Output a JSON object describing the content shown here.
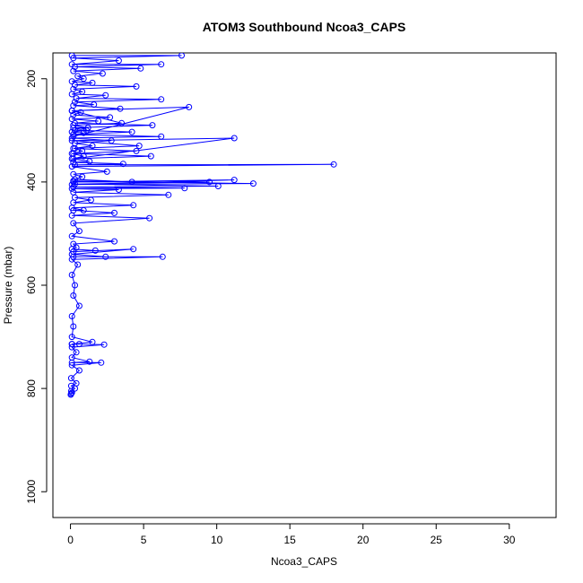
{
  "chart_data": {
    "type": "line",
    "title": "ATOM3 Southbound Ncoa3_CAPS",
    "xlabel": "Ncoa3_CAPS",
    "ylabel": "Pressure (mbar)",
    "xlim": [
      -1.2,
      33.2
    ],
    "ylim": [
      1050,
      150
    ],
    "y_reversed": true,
    "x_ticks": [
      "0",
      "5",
      "10",
      "15",
      "20",
      "25",
      "30"
    ],
    "y_ticks": [
      "200",
      "400",
      "600",
      "800",
      "1000"
    ],
    "grid": false,
    "legend": "none",
    "colors": {
      "series": "#0000ff",
      "axes": "#000000"
    },
    "marker": "open-circle",
    "series": [
      {
        "x": [
          0.1,
          7.6,
          0.2,
          3.3,
          0.1,
          6.2,
          0.3,
          4.8,
          0.2,
          2.2,
          0.5,
          0.9,
          0.1,
          1.5,
          0.3,
          4.5,
          0.2,
          0.8,
          0.1,
          2.4,
          0.4,
          6.2,
          0.3,
          1.6,
          0.2,
          3.4,
          0.1,
          0.7,
          0.2,
          2.7,
          0.1,
          1.9,
          0.3,
          5.6,
          0.2,
          1.1,
          0.1,
          0.9,
          0.2,
          8.1,
          0.1,
          3.5,
          0.2,
          1.2,
          0.3,
          4.2,
          0.2,
          6.2,
          0.1,
          2.8,
          0.3,
          1.5,
          0.2,
          4.5,
          0.1,
          0.9,
          0.2,
          11.2,
          0.1,
          4.7,
          0.3,
          0.8,
          0.2,
          5.5,
          0.1,
          1.3,
          0.2,
          3.6,
          0.3,
          18.0,
          0.1,
          2.5,
          0.2,
          0.8,
          0.3,
          4.2,
          0.2,
          12.5,
          0.1,
          11.2,
          0.2,
          9.5,
          0.3,
          10.1,
          0.2,
          7.8,
          0.1,
          3.3,
          0.2,
          6.7,
          0.3,
          1.4,
          0.2,
          4.3,
          0.1,
          0.9,
          0.2,
          3.0,
          0.1,
          5.4,
          0.2,
          0.6,
          0.1,
          3.0,
          0.2,
          0.4,
          0.1,
          1.7,
          0.2,
          4.3,
          0.1,
          2.4,
          0.2,
          6.3,
          0.1,
          0.5,
          0.1,
          0.3,
          0.2,
          0.6,
          0.1,
          0.2,
          0.1,
          1.5,
          0.1,
          0.6,
          0.1,
          2.3,
          0.1,
          0.4,
          0.1,
          1.3,
          0.1,
          2.1,
          0.1,
          0.6,
          0.05,
          0.4,
          0.05,
          0.3,
          0.05,
          0.1,
          0.05,
          0.02
        ],
        "y": [
          155,
          155,
          160,
          165,
          172,
          172,
          177,
          180,
          185,
          190,
          195,
          200,
          205,
          208,
          212,
          215,
          220,
          225,
          230,
          232,
          238,
          240,
          245,
          250,
          252,
          258,
          262,
          265,
          270,
          275,
          278,
          282,
          286,
          290,
          295,
          300,
          303,
          305,
          312,
          255,
          262,
          286,
          290,
          295,
          300,
          303,
          308,
          312,
          315,
          320,
          325,
          330,
          335,
          340,
          345,
          350,
          355,
          315,
          320,
          330,
          335,
          340,
          345,
          350,
          355,
          360,
          362,
          365,
          367,
          366,
          370,
          380,
          385,
          390,
          395,
          400,
          398,
          403,
          405,
          396,
          400,
          400,
          404,
          408,
          410,
          412,
          413,
          415,
          420,
          425,
          430,
          435,
          440,
          445,
          450,
          455,
          455,
          460,
          465,
          470,
          480,
          495,
          505,
          515,
          520,
          527,
          530,
          533,
          535,
          530,
          540,
          545,
          545,
          545,
          550,
          560,
          580,
          600,
          620,
          640,
          660,
          680,
          700,
          710,
          714,
          714,
          714,
          715,
          720,
          730,
          740,
          748,
          750,
          750,
          755,
          765,
          780,
          790,
          795,
          800,
          805,
          808,
          810,
          812
        ]
      }
    ]
  }
}
